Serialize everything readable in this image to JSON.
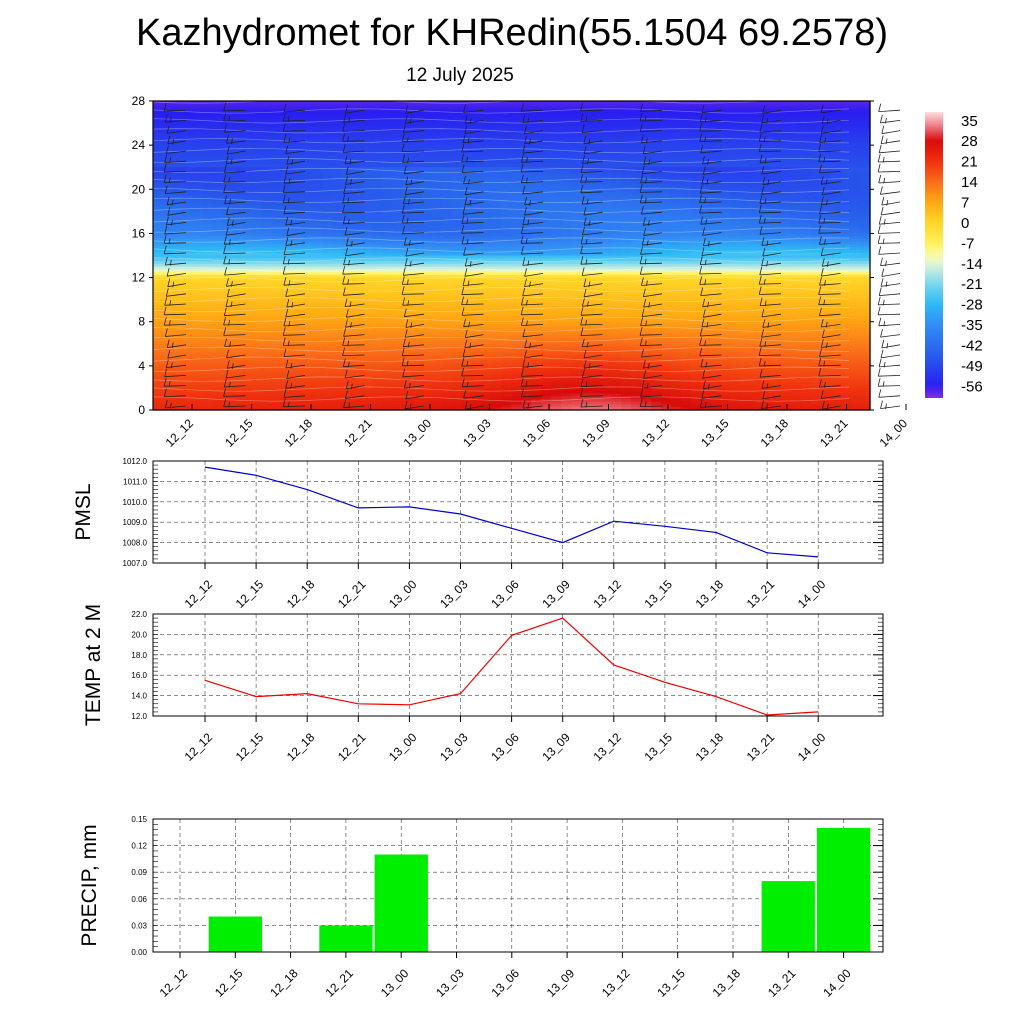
{
  "title": "Kazhydromet for KHRedin(55.1504 69.2578)",
  "subtitle": "12 July 2025",
  "time_labels": [
    "12_12",
    "12_15",
    "12_18",
    "12_21",
    "13_00",
    "13_03",
    "13_06",
    "13_09",
    "13_12",
    "13_15",
    "13_18",
    "13_21",
    "14_00"
  ],
  "colorbar_labels": [
    "35",
    "28",
    "21",
    "14",
    "7",
    "0",
    "-7",
    "-14",
    "-21",
    "-28",
    "-35",
    "-42",
    "-49",
    "-56"
  ],
  "colors": {
    "pmsl_line": "#0000cc",
    "temp_line": "#ee0000",
    "precip_bar": "#00ee00"
  },
  "chart_data": [
    {
      "type": "heatmap",
      "name": "vertical-profile",
      "ylim": [
        0,
        28
      ],
      "y_ticks": [
        0,
        4,
        8,
        12,
        16,
        20,
        24,
        28
      ],
      "colorbar_range": [
        -60,
        38
      ],
      "description_levels": "temperature decreases with height; freezing level near 12.6; warmest near 13_09 at surface; wind barbs at every level",
      "profile_values": [
        {
          "h": 0,
          "t": 25
        },
        {
          "h": 4,
          "t": 17
        },
        {
          "h": 8,
          "t": 8
        },
        {
          "h": 12,
          "t": 0
        },
        {
          "h": 12.6,
          "t": -13
        },
        {
          "h": 14,
          "t": -28
        },
        {
          "h": 16,
          "t": -40
        },
        {
          "h": 20,
          "t": -45
        },
        {
          "h": 24,
          "t": -50
        },
        {
          "h": 28,
          "t": -58
        }
      ],
      "surface_anomaly": {
        "peak_index": 7,
        "peak_t": 33
      }
    },
    {
      "type": "line",
      "ylabel": "PMSL",
      "ylim": [
        1007.0,
        1012.0
      ],
      "y_ticks": [
        "1007.0",
        "1008.0",
        "1009.0",
        "1010.0",
        "1011.0",
        "1012.0"
      ],
      "x": [
        "12_12",
        "12_15",
        "12_18",
        "12_21",
        "13_00",
        "13_03",
        "13_06",
        "13_09",
        "13_12",
        "13_15",
        "13_18",
        "13_21",
        "14_00"
      ],
      "values": [
        1011.7,
        1011.3,
        1010.6,
        1009.7,
        1009.75,
        1009.4,
        1008.7,
        1008.0,
        1009.05,
        1008.8,
        1008.5,
        1007.5,
        1007.3
      ]
    },
    {
      "type": "line",
      "ylabel": "TEMP at 2 M",
      "ylim": [
        12.0,
        22.0
      ],
      "y_ticks": [
        "12.0",
        "14.0",
        "16.0",
        "18.0",
        "20.0",
        "22.0"
      ],
      "x": [
        "12_12",
        "12_15",
        "12_18",
        "12_21",
        "13_00",
        "13_03",
        "13_06",
        "13_09",
        "13_12",
        "13_15",
        "13_18",
        "13_21",
        "14_00"
      ],
      "values": [
        15.5,
        13.9,
        14.2,
        13.2,
        13.1,
        14.2,
        19.9,
        21.6,
        17.0,
        15.3,
        13.9,
        12.1,
        12.4
      ]
    },
    {
      "type": "bar",
      "ylabel": "PRECIP, mm",
      "ylim": [
        0,
        0.15
      ],
      "y_ticks": [
        "0.00",
        "0.03",
        "0.06",
        "0.09",
        "0.12",
        "0.15"
      ],
      "categories": [
        "12_12",
        "12_15",
        "12_18",
        "12_21",
        "13_00",
        "13_03",
        "13_06",
        "13_09",
        "13_12",
        "13_15",
        "13_18",
        "13_21",
        "14_00"
      ],
      "values": [
        0,
        0.04,
        0,
        0.03,
        0.11,
        0,
        0,
        0,
        0,
        0,
        0,
        0.08,
        0.14
      ]
    }
  ]
}
